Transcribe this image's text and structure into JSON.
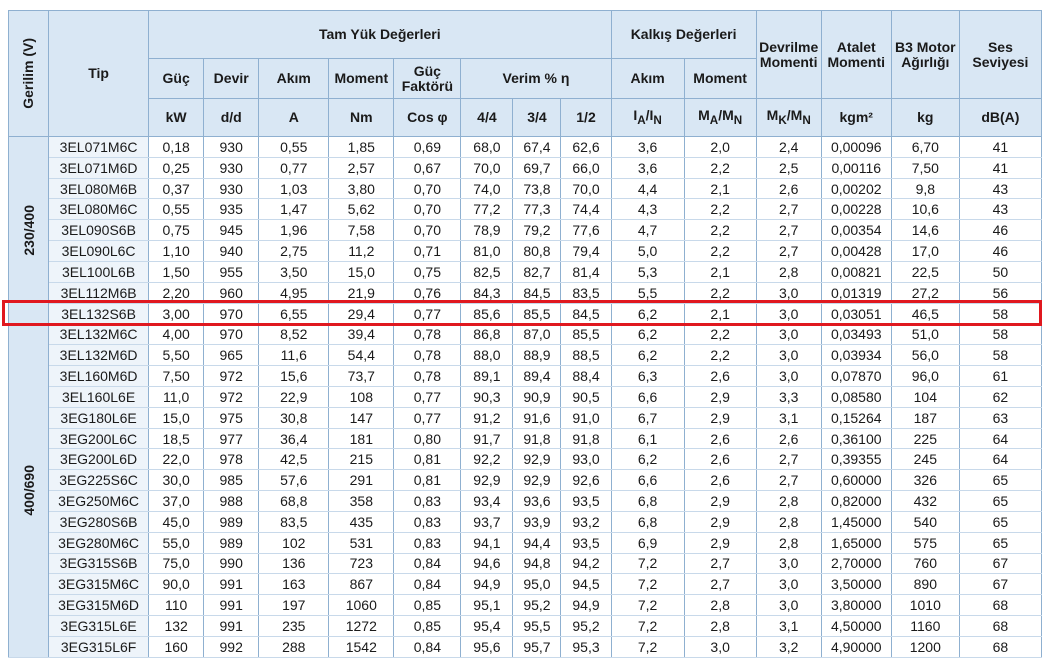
{
  "header": {
    "group_label": "Gerilim (V)",
    "tip": "Tip",
    "tam_yuk": "Tam Yük Değerleri",
    "kalkis": "Kalkış Değerleri",
    "devrilme": "Devrilme Momenti",
    "atalet": "Atalet Momenti",
    "b3": "B3 Motor Ağırlığı",
    "ses": "Ses Seviyesi",
    "sub": [
      "Güç",
      "Devir",
      "Akım",
      "Moment",
      "Güç Faktörü",
      "Verim % η",
      "Akım",
      "Moment"
    ],
    "units": [
      "kW",
      "d/d",
      "A",
      "Nm",
      "Cos φ",
      "4/4",
      "3/4",
      "1/2",
      [
        "I",
        "A",
        "/I",
        "N"
      ],
      [
        "M",
        "A",
        "/M",
        "N"
      ],
      [
        "M",
        "K",
        "/M",
        "N"
      ],
      "kgm²",
      "kg",
      "dB(A)"
    ]
  },
  "groups": [
    {
      "voltage": "230/400",
      "rows": [
        [
          "3EL071M6C",
          "0,18",
          "930",
          "0,55",
          "1,85",
          "0,69",
          "68,0",
          "67,4",
          "62,6",
          "3,6",
          "2,0",
          "2,4",
          "0,00096",
          "6,70",
          "41"
        ],
        [
          "3EL071M6D",
          "0,25",
          "930",
          "0,77",
          "2,57",
          "0,67",
          "70,0",
          "69,7",
          "66,0",
          "3,6",
          "2,2",
          "2,5",
          "0,00116",
          "7,50",
          "41"
        ],
        [
          "3EL080M6B",
          "0,37",
          "930",
          "1,03",
          "3,80",
          "0,70",
          "74,0",
          "73,8",
          "70,0",
          "4,4",
          "2,1",
          "2,6",
          "0,00202",
          "9,8",
          "43"
        ],
        [
          "3EL080M6C",
          "0,55",
          "935",
          "1,47",
          "5,62",
          "0,70",
          "77,2",
          "77,3",
          "74,4",
          "4,3",
          "2,2",
          "2,7",
          "0,00228",
          "10,6",
          "43"
        ],
        [
          "3EL090S6B",
          "0,75",
          "945",
          "1,96",
          "7,58",
          "0,70",
          "78,9",
          "79,2",
          "77,6",
          "4,7",
          "2,2",
          "2,7",
          "0,00354",
          "14,6",
          "46"
        ],
        [
          "3EL090L6C",
          "1,10",
          "940",
          "2,75",
          "11,2",
          "0,71",
          "81,0",
          "80,8",
          "79,4",
          "5,0",
          "2,2",
          "2,7",
          "0,00428",
          "17,0",
          "46"
        ],
        [
          "3EL100L6B",
          "1,50",
          "955",
          "3,50",
          "15,0",
          "0,75",
          "82,5",
          "82,7",
          "81,4",
          "5,3",
          "2,1",
          "2,8",
          "0,00821",
          "22,5",
          "50"
        ],
        [
          "3EL112M6B",
          "2,20",
          "960",
          "4,95",
          "21,9",
          "0,76",
          "84,3",
          "84,5",
          "83,5",
          "5,5",
          "2,2",
          "3,0",
          "0,01319",
          "27,2",
          "56"
        ],
        [
          "3EL132S6B",
          "3,00",
          "970",
          "6,55",
          "29,4",
          "0,77",
          "85,6",
          "85,5",
          "84,5",
          "6,2",
          "2,1",
          "3,0",
          "0,03051",
          "46,5",
          "58"
        ]
      ]
    },
    {
      "voltage": "400/690",
      "rows": [
        [
          "3EL132M6C",
          "4,00",
          "970",
          "8,52",
          "39,4",
          "0,78",
          "86,8",
          "87,0",
          "85,5",
          "6,2",
          "2,2",
          "3,0",
          "0,03493",
          "51,0",
          "58"
        ],
        [
          "3EL132M6D",
          "5,50",
          "965",
          "11,6",
          "54,4",
          "0,78",
          "88,0",
          "88,9",
          "88,5",
          "6,2",
          "2,2",
          "3,0",
          "0,03934",
          "56,0",
          "58"
        ],
        [
          "3EL160M6D",
          "7,50",
          "972",
          "15,6",
          "73,7",
          "0,78",
          "89,1",
          "89,4",
          "88,4",
          "6,3",
          "2,6",
          "3,0",
          "0,07870",
          "96,0",
          "61"
        ],
        [
          "3EL160L6E",
          "11,0",
          "972",
          "22,9",
          "108",
          "0,77",
          "90,3",
          "90,9",
          "90,5",
          "6,6",
          "2,9",
          "3,3",
          "0,08580",
          "104",
          "62"
        ],
        [
          "3EG180L6E",
          "15,0",
          "975",
          "30,8",
          "147",
          "0,77",
          "91,2",
          "91,6",
          "91,0",
          "6,7",
          "2,9",
          "3,1",
          "0,15264",
          "187",
          "63"
        ],
        [
          "3EG200L6C",
          "18,5",
          "977",
          "36,4",
          "181",
          "0,80",
          "91,7",
          "91,8",
          "91,8",
          "6,1",
          "2,6",
          "2,6",
          "0,36100",
          "225",
          "64"
        ],
        [
          "3EG200L6D",
          "22,0",
          "978",
          "42,5",
          "215",
          "0,81",
          "92,2",
          "92,9",
          "93,0",
          "6,2",
          "2,6",
          "2,7",
          "0,39355",
          "245",
          "64"
        ],
        [
          "3EG225S6C",
          "30,0",
          "985",
          "57,6",
          "291",
          "0,81",
          "92,9",
          "92,9",
          "92,6",
          "6,6",
          "2,6",
          "2,7",
          "0,60000",
          "326",
          "65"
        ],
        [
          "3EG250M6C",
          "37,0",
          "988",
          "68,8",
          "358",
          "0,83",
          "93,4",
          "93,6",
          "93,5",
          "6,8",
          "2,9",
          "2,8",
          "0,82000",
          "432",
          "65"
        ],
        [
          "3EG280S6B",
          "45,0",
          "989",
          "83,5",
          "435",
          "0,83",
          "93,7",
          "93,9",
          "93,2",
          "6,8",
          "2,9",
          "2,8",
          "1,45000",
          "540",
          "65"
        ],
        [
          "3EG280M6C",
          "55,0",
          "989",
          "102",
          "531",
          "0,83",
          "94,1",
          "94,4",
          "93,5",
          "6,9",
          "2,9",
          "2,8",
          "1,65000",
          "575",
          "65"
        ],
        [
          "3EG315S6B",
          "75,0",
          "990",
          "136",
          "723",
          "0,84",
          "94,6",
          "94,8",
          "94,2",
          "7,2",
          "2,7",
          "3,0",
          "2,70000",
          "760",
          "67"
        ],
        [
          "3EG315M6C",
          "90,0",
          "991",
          "163",
          "867",
          "0,84",
          "94,9",
          "95,0",
          "94,5",
          "7,2",
          "2,7",
          "3,0",
          "3,50000",
          "890",
          "67"
        ],
        [
          "3EG315M6D",
          "110",
          "991",
          "197",
          "1060",
          "0,85",
          "95,1",
          "95,2",
          "94,9",
          "7,2",
          "2,8",
          "3,0",
          "3,80000",
          "1010",
          "68"
        ],
        [
          "3EG315L6E",
          "132",
          "991",
          "235",
          "1272",
          "0,85",
          "95,4",
          "95,5",
          "95,2",
          "7,2",
          "2,8",
          "3,1",
          "4,50000",
          "1160",
          "68"
        ],
        [
          "3EG315L6F",
          "160",
          "992",
          "288",
          "1542",
          "0,84",
          "95,6",
          "95,7",
          "95,3",
          "7,2",
          "3,0",
          "3,2",
          "4,90000",
          "1200",
          "68"
        ]
      ]
    }
  ]
}
